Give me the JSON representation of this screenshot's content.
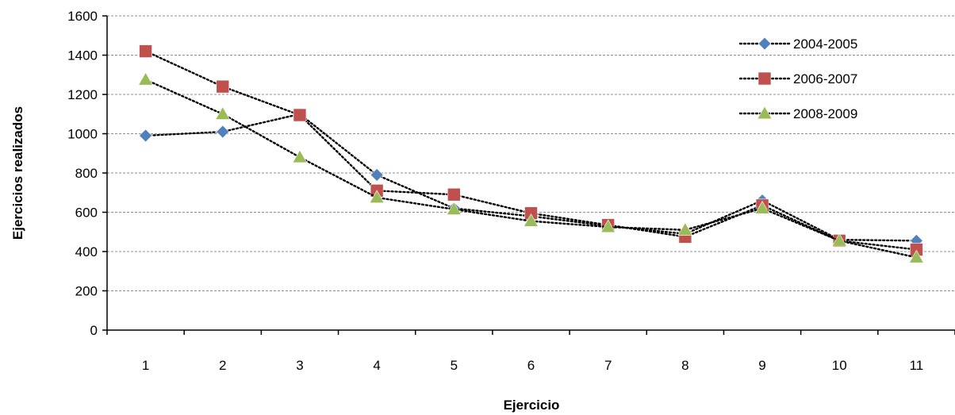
{
  "chart_data": {
    "type": "line",
    "title": "",
    "xlabel": "Ejercicio",
    "ylabel": "Ejercicios realizados",
    "x": [
      1,
      2,
      3,
      4,
      5,
      6,
      7,
      8,
      9,
      10,
      11
    ],
    "ylim": [
      0,
      1600
    ],
    "yticks": [
      0,
      200,
      400,
      600,
      800,
      1000,
      1200,
      1400,
      1600
    ],
    "grid": "horizontal",
    "legend_position": "top-right",
    "series": [
      {
        "name": "2004-2005",
        "color": "#4F81BD",
        "marker": "diamond",
        "values": [
          990,
          1010,
          1100,
          790,
          620,
          580,
          530,
          490,
          660,
          460,
          455
        ]
      },
      {
        "name": "2006-2007",
        "color": "#C0504D",
        "marker": "square",
        "values": [
          1420,
          1240,
          1095,
          710,
          690,
          595,
          535,
          475,
          635,
          455,
          410
        ]
      },
      {
        "name": "2008-2009",
        "color": "#9BBB59",
        "marker": "triangle",
        "values": [
          1275,
          1100,
          880,
          675,
          615,
          555,
          525,
          510,
          620,
          455,
          370
        ]
      }
    ]
  }
}
